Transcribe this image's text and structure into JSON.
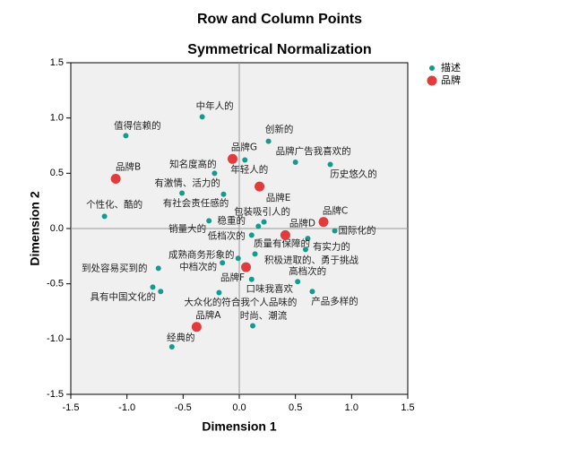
{
  "chart_data": {
    "type": "scatter",
    "title": "Row and Column Points",
    "subtitle": "Symmetrical Normalization",
    "xlabel": "Dimension 1",
    "ylabel": "Dimension 2",
    "xlim": [
      -1.5,
      1.5
    ],
    "ylim": [
      -1.5,
      1.5
    ],
    "xticks": [
      {
        "value": -1.5,
        "label": "-1.5"
      },
      {
        "value": -1,
        "label": "-1.0"
      },
      {
        "value": -0.5,
        "label": "-0.5"
      },
      {
        "value": 0,
        "label": "0.0"
      },
      {
        "value": 0.5,
        "label": "0.5"
      },
      {
        "value": 1,
        "label": "1.0"
      },
      {
        "value": 1.5,
        "label": "1.5"
      }
    ],
    "yticks": [
      {
        "value": -1.5,
        "label": "-1.5"
      },
      {
        "value": -1,
        "label": "-1.0"
      },
      {
        "value": -0.5,
        "label": "-0.5"
      },
      {
        "value": 0,
        "label": "0.0"
      },
      {
        "value": 0.5,
        "label": "0.5"
      },
      {
        "value": 1,
        "label": "1.0"
      },
      {
        "value": 1.5,
        "label": "1.5"
      }
    ],
    "legend": "top-right",
    "series": [
      {
        "name": "描述",
        "color": "#129b8e",
        "labels": [
          "中年人的",
          "值得信赖的",
          "创新的",
          "品牌广告我喜欢的",
          "历史悠久的",
          "知名度高的",
          "年轻人的",
          "有激情、活力的",
          "有社会责任感的",
          "个性化、酷的",
          "包装吸引人的",
          "稳重的",
          "销量大的",
          "低档次的",
          "国际化的",
          "质量有保障的",
          "有实力的",
          "积极进取的、勇于挑战",
          "成熟商务形象的",
          "中档次的",
          "到处容易买到的",
          "高档次的",
          "口味我喜欢",
          "具有中国文化的",
          null,
          "大众化的符合我个人品味的",
          "产品多样的",
          "时尚、潮流",
          "经典的"
        ],
        "x": [
          -0.33,
          -1.01,
          0.26,
          0.5,
          0.81,
          -0.22,
          0.05,
          -0.51,
          -0.14,
          -1.2,
          0.22,
          0.17,
          -0.27,
          0.11,
          0.85,
          0.61,
          0.59,
          0.14,
          -0.01,
          -0.15,
          -0.72,
          0.52,
          0.11,
          -0.7,
          -0.77,
          -0.18,
          0.65,
          0.12,
          -0.6
        ],
        "y": [
          1.01,
          0.84,
          0.79,
          0.6,
          0.58,
          0.5,
          0.62,
          0.32,
          0.31,
          0.11,
          0.06,
          0.02,
          0.07,
          -0.06,
          -0.02,
          -0.09,
          -0.19,
          -0.23,
          -0.27,
          -0.31,
          -0.36,
          -0.48,
          -0.46,
          -0.57,
          -0.53,
          -0.58,
          -0.57,
          -0.88,
          -1.07
        ]
      },
      {
        "name": "品牌",
        "color": "#e23b3b",
        "labels": [
          "品牌G",
          "品牌B",
          "品牌E",
          "品牌C",
          "品牌D",
          "品牌F",
          "品牌A"
        ],
        "x": [
          -0.06,
          -1.1,
          0.18,
          0.75,
          0.41,
          0.06,
          -0.38
        ],
        "y": [
          0.63,
          0.45,
          0.38,
          0.06,
          -0.06,
          -0.35,
          -0.89
        ]
      }
    ]
  }
}
